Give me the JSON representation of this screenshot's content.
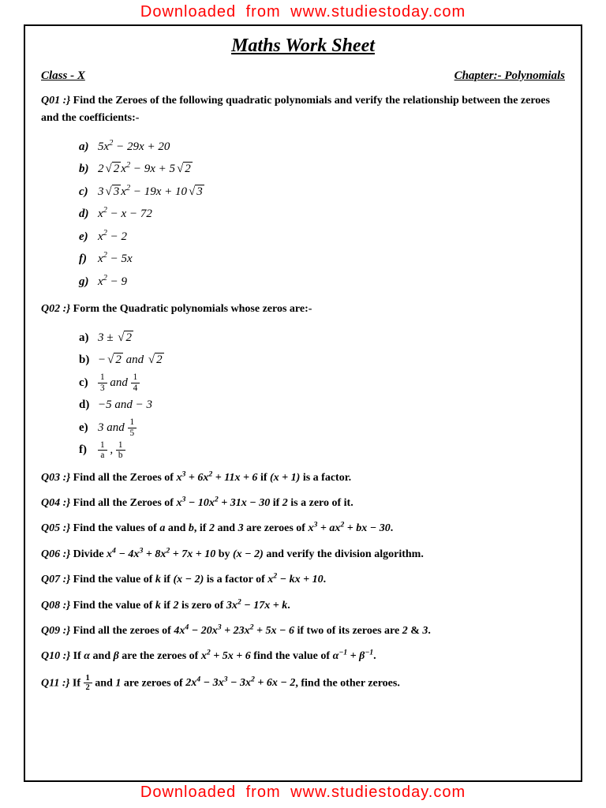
{
  "banner_top": "Downloaded from www.studiestoday.com",
  "banner_bottom": "Downloaded from www.studiestoday.com",
  "title": "Maths Work Sheet",
  "class_label": "Class - X",
  "chapter_label": "Chapter:- Polynomials",
  "colors": {
    "banner": "#ff0000",
    "text": "#000000",
    "bg": "#ffffff"
  },
  "q01": {
    "num": "Q01 :}",
    "text": "Find the Zeroes of the following quadratic polynomials and verify the relationship between the zeroes and the coefficients:-",
    "items": [
      {
        "l": "a)",
        "m": "5x² − 29x + 20"
      },
      {
        "l": "b)",
        "m": "2√2 x² − 9x + 5√2"
      },
      {
        "l": "c)",
        "m": "3√3 x² − 19x + 10√3"
      },
      {
        "l": "d)",
        "m": "x² − x − 72"
      },
      {
        "l": "e)",
        "m": "x² − 2"
      },
      {
        "l": "f)",
        "m": "x² − 5x"
      },
      {
        "l": "g)",
        "m": "x² − 9"
      }
    ]
  },
  "q02": {
    "num": "Q02 :}",
    "text": "Form the Quadratic polynomials whose zeros are:-",
    "items": [
      {
        "l": "a)",
        "m": "3 ± √2"
      },
      {
        "l": "b)",
        "m": "−√2 and √2"
      },
      {
        "l": "c)",
        "m": "frac13 and frac14"
      },
      {
        "l": "d)",
        "m": "−5 and − 3"
      },
      {
        "l": "e)",
        "m": "3 and frac15"
      },
      {
        "l": "f)",
        "m": "frac1a , frac1b"
      }
    ]
  },
  "q03": {
    "num": "Q03 :}",
    "text_pre": "Find all the Zeroes of ",
    "math": "x³ + 6x² + 11x + 6",
    "text_mid": " if ",
    "math2": "(x + 1)",
    "text_post": " is a factor."
  },
  "q04": {
    "num": "Q04 :}",
    "text_pre": "Find all the Zeroes of ",
    "math": "x³ − 10x² + 31x − 30",
    "text_mid": " if ",
    "math2": "2",
    "text_post": " is a zero of it."
  },
  "q05": {
    "num": "Q05 :}",
    "text": "Find the values of a and b, if 2 and 3 are zeroes of x³ + ax² + bx − 30."
  },
  "q06": {
    "num": "Q06 :}",
    "text": "Divide x⁴ − 4x³ + 8x² + 7x + 10 by (x − 2) and verify the division algorithm."
  },
  "q07": {
    "num": "Q07 :}",
    "text": "Find the value of k if (x − 2) is a factor of x² − kx + 10."
  },
  "q08": {
    "num": "Q08 :}",
    "text": "Find the value of k if 2 is zero of 3x² − 17x + k."
  },
  "q09": {
    "num": "Q09 :}",
    "text": "Find all the zeroes of 4x⁴ − 20x³ + 23x² + 5x − 6 if two of its zeroes are 2 & 3."
  },
  "q10": {
    "num": "Q10 :}",
    "text": "If α and β are the zeroes of x² + 5x + 6 find the value of α⁻¹ + β⁻¹."
  },
  "q11": {
    "num": "Q11 :}",
    "text": "If ½ and 1 are zeroes of 2x⁴ − 3x³ − 3x² + 6x − 2, find the other zeroes."
  }
}
